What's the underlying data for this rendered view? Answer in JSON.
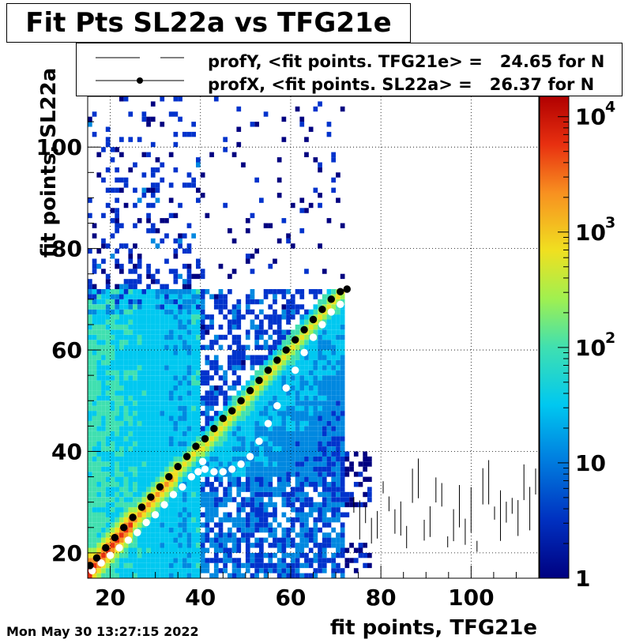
{
  "chart_data": {
    "type": "heatmap",
    "title": "Fit Pts SL22a vs TFG21e",
    "xlabel": "fit points, TFG21e",
    "ylabel": "fit points, SL22a",
    "xlim": [
      15,
      115
    ],
    "ylim": [
      15,
      110
    ],
    "x_ticks": [
      20,
      40,
      60,
      80,
      100
    ],
    "y_ticks": [
      20,
      40,
      60,
      80,
      100
    ],
    "z_scale": "log",
    "z_range": [
      1,
      15000
    ],
    "colorbar_ticks": [
      {
        "value": 1,
        "label": "1",
        "sup": ""
      },
      {
        "value": 10,
        "label": "10",
        "sup": ""
      },
      {
        "value": 100,
        "label": "10",
        "sup": "2"
      },
      {
        "value": 1000,
        "label": "10",
        "sup": "3"
      },
      {
        "value": 10000,
        "label": "10",
        "sup": "4"
      }
    ],
    "grid": true,
    "legend": {
      "placement": "top",
      "entries": [
        {
          "name": "profY, <fit points. TFG21e> =   24.65 for N",
          "marker": "open-circle",
          "color": "#ffffff"
        },
        {
          "name": "profX, <fit points. SL22a> =   26.37 for N",
          "marker": "filled-circle",
          "color": "#000000"
        }
      ]
    },
    "series": [
      {
        "name": "profX",
        "color": "#000000",
        "x": [
          15.5,
          17,
          19,
          21,
          23,
          25,
          27,
          29,
          31,
          33,
          35,
          37,
          39,
          41,
          43,
          45,
          47,
          49,
          51,
          53,
          55,
          57,
          59,
          61,
          63,
          65,
          67,
          69,
          71,
          72.5
        ],
        "y": [
          17.5,
          19,
          21,
          23,
          25,
          27,
          29,
          31,
          33,
          35,
          37,
          39,
          41,
          42.5,
          44.5,
          46.5,
          48,
          50,
          52,
          54,
          56,
          58,
          60,
          62,
          64,
          66,
          68,
          70,
          71.5,
          72
        ]
      },
      {
        "name": "profY",
        "color": "#ffffff",
        "x": [
          16,
          18,
          20,
          22,
          24,
          26,
          28,
          30,
          32,
          34,
          36,
          38,
          39.5,
          40.5,
          41,
          43,
          45,
          47,
          49,
          51,
          53,
          55,
          57,
          59,
          61,
          63,
          65,
          67,
          69,
          71
        ],
        "y": [
          16.5,
          18,
          19.5,
          21,
          22.5,
          24,
          26,
          27.5,
          29.5,
          31.5,
          33,
          35,
          36,
          38,
          36.5,
          36,
          36,
          36.5,
          37.5,
          39,
          42,
          45.5,
          49,
          52.5,
          56,
          59.5,
          62.5,
          65,
          67.5,
          69
        ]
      }
    ]
  },
  "footer": {
    "datestamp": "Mon May 30 13:27:15 2022"
  },
  "colors": {
    "palette": [
      "#000080",
      "#0033cc",
      "#0088e0",
      "#00c8f0",
      "#40e0b0",
      "#a0f050",
      "#f0e020",
      "#f89020",
      "#e83010",
      "#b00000"
    ]
  }
}
